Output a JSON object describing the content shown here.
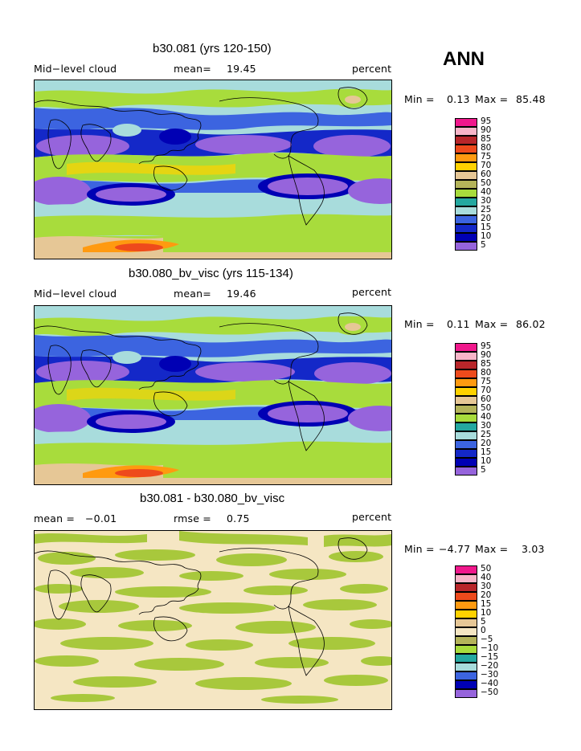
{
  "season": "ANN",
  "panels": [
    {
      "title": "b30.081 (yrs 120-150)",
      "left_label": "Mid−level cloud",
      "stat_label": "mean=",
      "stat_value": "19.45",
      "units": "percent",
      "min_label": "Min =",
      "min_value": "0.13",
      "max_label": "Max =",
      "max_value": "85.48",
      "legend_levels": [
        "95",
        "90",
        "85",
        "80",
        "75",
        "70",
        "60",
        "50",
        "40",
        "30",
        "25",
        "20",
        "15",
        "10",
        "5"
      ],
      "legend_colors": [
        "#f0188c",
        "#f7b5c8",
        "#b8262a",
        "#ee4a1c",
        "#ff9a10",
        "#ffd200",
        "#e6c796",
        "#b4b45a",
        "#a8dc3c",
        "#24a8a0",
        "#a8dcdc",
        "#3c64e0",
        "#1428c8",
        "#0000b4",
        "#9664dc"
      ]
    },
    {
      "title": "b30.080_bv_visc (yrs 115-134)",
      "left_label": "Mid−level cloud",
      "stat_label": "mean=",
      "stat_value": "19.46",
      "units": "percent",
      "min_label": "Min =",
      "min_value": "0.11",
      "max_label": "Max =",
      "max_value": "86.02",
      "legend_levels": [
        "95",
        "90",
        "85",
        "80",
        "75",
        "70",
        "60",
        "50",
        "40",
        "30",
        "25",
        "20",
        "15",
        "10",
        "5"
      ],
      "legend_colors": [
        "#f0188c",
        "#f7b5c8",
        "#b8262a",
        "#ee4a1c",
        "#ff9a10",
        "#ffd200",
        "#e6c796",
        "#b4b45a",
        "#a8dc3c",
        "#24a8a0",
        "#a8dcdc",
        "#3c64e0",
        "#1428c8",
        "#0000b4",
        "#9664dc"
      ]
    },
    {
      "title": "b30.081 - b30.080_bv_visc",
      "left_label": "mean =",
      "left_value": "−0.01",
      "stat_label": "rmse =",
      "stat_value": "0.75",
      "units": "percent",
      "min_label": "Min =",
      "min_value": "−4.77",
      "max_label": "Max =",
      "max_value": "3.03",
      "legend_levels": [
        "50",
        "40",
        "30",
        "20",
        "15",
        "10",
        "5",
        "0",
        "−5",
        "−10",
        "−15",
        "−20",
        "−30",
        "−40",
        "−50"
      ],
      "legend_colors": [
        "#f0188c",
        "#f7b5c8",
        "#b8262a",
        "#ee4a1c",
        "#ff9a10",
        "#ffd200",
        "#e6c796",
        "#f5e6c3",
        "#b4b45a",
        "#a8dc3c",
        "#24a8a0",
        "#a8dcdc",
        "#3c64e0",
        "#0000b4",
        "#9664dc"
      ]
    }
  ]
}
